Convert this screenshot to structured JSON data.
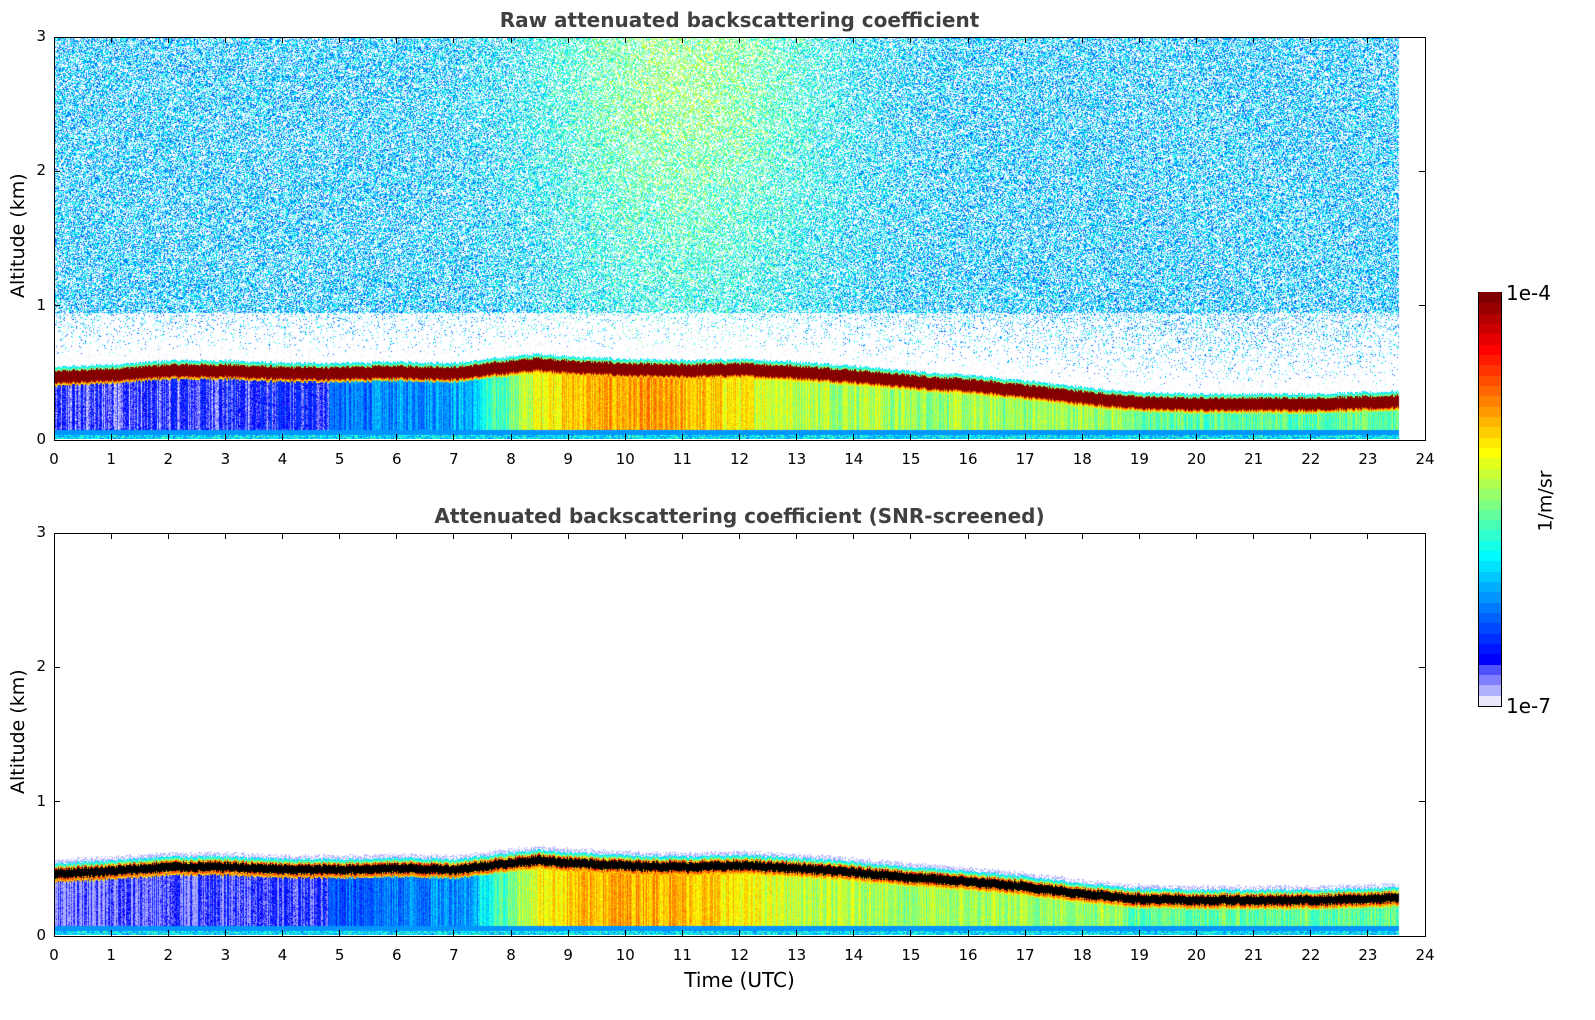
{
  "chart_data": [
    {
      "type": "heatmap",
      "title": "Raw attenuated backscattering coefficient",
      "xlabel": "",
      "ylabel": "Altitude (km)",
      "xlim": [
        0,
        24
      ],
      "ylim": [
        0,
        3
      ],
      "xticks": [
        "0",
        "1",
        "2",
        "3",
        "4",
        "5",
        "6",
        "7",
        "8",
        "9",
        "10",
        "11",
        "12",
        "13",
        "14",
        "15",
        "16",
        "17",
        "18",
        "19",
        "20",
        "21",
        "22",
        "23",
        "24"
      ],
      "yticks": [
        "0",
        "1",
        "2",
        "3"
      ],
      "data_time_range_h": [
        0,
        23.55
      ],
      "layer_top_km": {
        "time_h": [
          0,
          1,
          2,
          3,
          4,
          5,
          6,
          7,
          8,
          8.5,
          9,
          10,
          11,
          12,
          13,
          14,
          15,
          16,
          17,
          18,
          19,
          20,
          21,
          22,
          23,
          23.55
        ],
        "altitude_km": [
          0.48,
          0.5,
          0.53,
          0.53,
          0.51,
          0.51,
          0.52,
          0.51,
          0.56,
          0.58,
          0.56,
          0.54,
          0.53,
          0.54,
          0.52,
          0.49,
          0.45,
          0.42,
          0.38,
          0.33,
          0.29,
          0.28,
          0.28,
          0.28,
          0.29,
          0.3
        ]
      },
      "grid": false
    },
    {
      "type": "heatmap",
      "title": "Attenuated backscattering coefficient (SNR-screened)",
      "xlabel": "Time (UTC)",
      "ylabel": "Altitude (km)",
      "xlim": [
        0,
        24
      ],
      "ylim": [
        0,
        3
      ],
      "xticks": [
        "0",
        "1",
        "2",
        "3",
        "4",
        "5",
        "6",
        "7",
        "8",
        "9",
        "10",
        "11",
        "12",
        "13",
        "14",
        "15",
        "16",
        "17",
        "18",
        "19",
        "20",
        "21",
        "22",
        "23",
        "24"
      ],
      "yticks": [
        "0",
        "1",
        "2",
        "3"
      ],
      "data_time_range_h": [
        0,
        23.55
      ],
      "grid": false
    }
  ],
  "colorbar": {
    "min_label": "1e-7",
    "max_label": "1e-4",
    "unit": "1/m/sr",
    "scale": "log",
    "colormap": "jet"
  },
  "colors": {
    "title": "#404040",
    "saturated": "#000000",
    "low_end": "#e8e8f8",
    "high_end": "#7f0000"
  }
}
